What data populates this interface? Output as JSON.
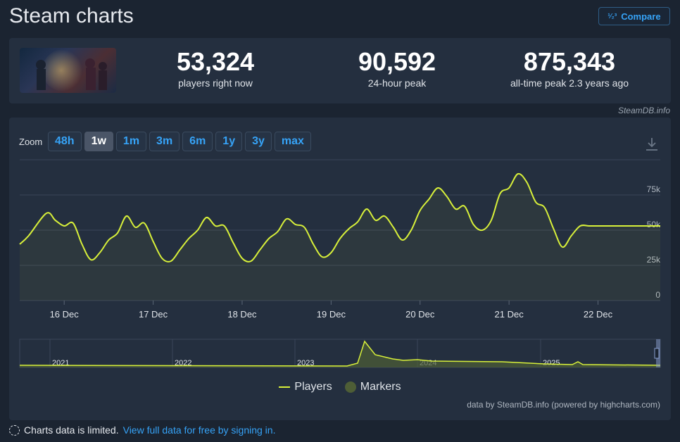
{
  "header": {
    "title": "Steam charts",
    "compare_label": "Compare",
    "compare_icon": "1/2/3 fraction-icon"
  },
  "stats": {
    "game_image_alt": "Baldur's Gate 3",
    "players_now": {
      "value": "53,324",
      "label": "players right now"
    },
    "peak_24h": {
      "value": "90,592",
      "label": "24-hour peak"
    },
    "all_time_peak": {
      "value": "875,343",
      "label": "all-time peak 2.3 years ago"
    },
    "credit": "SteamDB.info"
  },
  "zoom": {
    "label": "Zoom",
    "options": [
      "48h",
      "1w",
      "1m",
      "3m",
      "6m",
      "1y",
      "3y",
      "max"
    ],
    "active": "1w"
  },
  "legend": {
    "players": "Players",
    "markers": "Markers"
  },
  "chart_credit": "data by SteamDB.info (powered by highcharts.com)",
  "notice": {
    "text": "Charts data is limited.",
    "link": "View full data for free by signing in."
  },
  "colors": {
    "line": "#d8f03a",
    "accent": "#36a3f7",
    "panel": "#242f3f",
    "background": "#1b2431"
  },
  "chart_data": [
    {
      "type": "line",
      "title": "",
      "xlabel": "",
      "ylabel": "",
      "x_ticks": [
        "16 Dec",
        "17 Dec",
        "18 Dec",
        "19 Dec",
        "20 Dec",
        "21 Dec",
        "22 Dec"
      ],
      "y_ticks": [
        "0",
        "25k",
        "50k",
        "75k"
      ],
      "ylim": [
        0,
        100000
      ],
      "grid": true,
      "x_days": [
        15.5,
        15.6,
        15.8,
        15.9,
        16.0,
        16.1,
        16.2,
        16.3,
        16.4,
        16.5,
        16.6,
        16.7,
        16.8,
        16.9,
        17.0,
        17.1,
        17.2,
        17.3,
        17.4,
        17.5,
        17.6,
        17.7,
        17.8,
        17.9,
        18.0,
        18.1,
        18.2,
        18.3,
        18.4,
        18.5,
        18.6,
        18.7,
        18.8,
        18.9,
        19.0,
        19.1,
        19.2,
        19.3,
        19.4,
        19.5,
        19.6,
        19.7,
        19.8,
        19.9,
        20.0,
        20.1,
        20.2,
        20.3,
        20.4,
        20.5,
        20.6,
        20.7,
        20.8,
        20.9,
        21.0,
        21.1,
        21.2,
        21.3,
        21.4,
        21.5,
        21.6,
        21.7,
        21.8,
        21.9,
        22.0,
        22.1,
        22.2,
        22.3,
        22.4,
        22.5,
        22.6,
        22.7
      ],
      "series": [
        {
          "name": "Players",
          "values": [
            40000,
            46000,
            62000,
            57000,
            53000,
            55000,
            40000,
            29000,
            34000,
            43000,
            48000,
            60000,
            52000,
            55000,
            42000,
            30000,
            28000,
            36000,
            44000,
            50000,
            59000,
            53000,
            53000,
            41000,
            30000,
            28000,
            36000,
            44000,
            49000,
            58000,
            54000,
            52000,
            40000,
            31000,
            34000,
            44000,
            51000,
            56000,
            65000,
            57000,
            60000,
            52000,
            43000,
            50000,
            64000,
            72000,
            80000,
            74000,
            65000,
            67000,
            54000,
            50000,
            57000,
            76000,
            80000,
            90000,
            84000,
            70000,
            66000,
            51000,
            38000,
            46000,
            53000,
            53000,
            53000,
            53000,
            53000,
            53000,
            53000,
            53000,
            53000,
            53000
          ]
        }
      ]
    },
    {
      "type": "area",
      "title": "",
      "x_ticks": [
        "2021",
        "2022",
        "2023",
        "2024",
        "2025"
      ],
      "series": [
        {
          "name": "Players",
          "values": [
            30000,
            25000,
            20000,
            875343,
            150000,
            90000,
            70000,
            50000
          ]
        }
      ]
    }
  ]
}
